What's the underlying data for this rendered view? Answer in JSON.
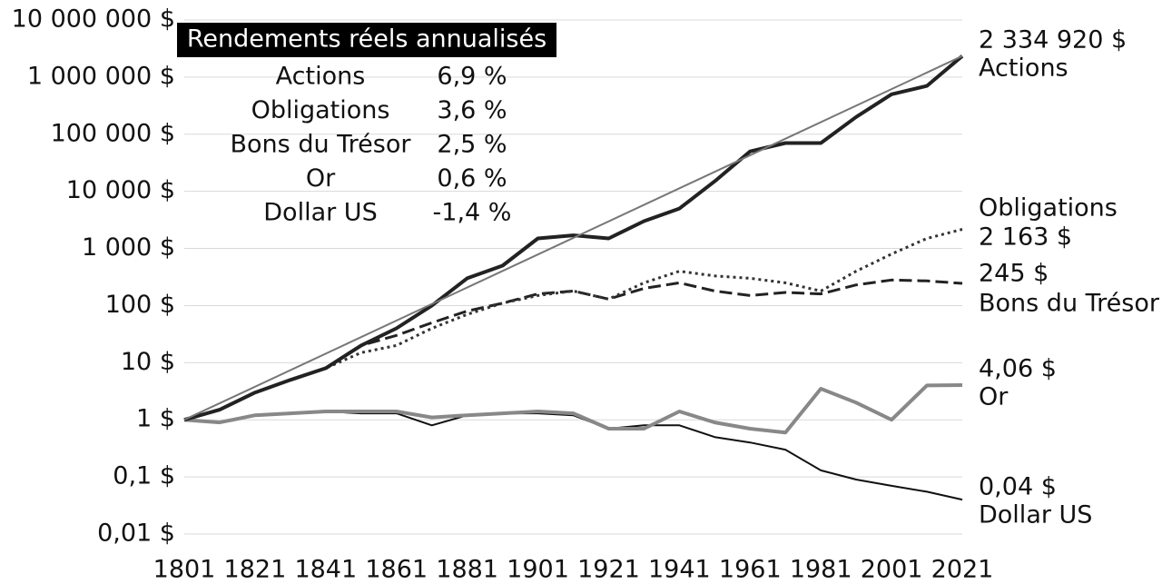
{
  "chart_data": {
    "type": "line",
    "log_scale": true,
    "grid": true,
    "annotation": {
      "title": "Rendements réels annualisés",
      "rows": [
        [
          "Actions",
          "6,9 %"
        ],
        [
          "Obligations",
          "3,6 %"
        ],
        [
          "Bons du Trésor",
          "2,5 %"
        ],
        [
          "Or",
          "0,6 %"
        ],
        [
          "Dollar US",
          "-1,4 %"
        ]
      ]
    },
    "x": [
      1801,
      1811,
      1821,
      1831,
      1841,
      1851,
      1861,
      1871,
      1881,
      1891,
      1901,
      1911,
      1921,
      1931,
      1941,
      1951,
      1961,
      1971,
      1981,
      1991,
      2001,
      2011,
      2021
    ],
    "xlim": [
      1801,
      2021
    ],
    "xticks": [
      1801,
      1821,
      1841,
      1861,
      1881,
      1901,
      1921,
      1941,
      1961,
      1981,
      2001,
      2021
    ],
    "ylim": [
      0.01,
      10000000
    ],
    "yticks": [
      {
        "value": 0.01,
        "label": "0,01 $"
      },
      {
        "value": 0.1,
        "label": "0,1 $"
      },
      {
        "value": 1,
        "label": "1 $"
      },
      {
        "value": 10,
        "label": "10 $"
      },
      {
        "value": 100,
        "label": "100 $"
      },
      {
        "value": 1000,
        "label": "1 000 $"
      },
      {
        "value": 10000,
        "label": "10 000 $"
      },
      {
        "value": 100000,
        "label": "100 000 $"
      },
      {
        "value": 1000000,
        "label": "1 000 000 $"
      },
      {
        "value": 10000000,
        "label": "10 000 000 $"
      }
    ],
    "trend": {
      "x": [
        1801,
        2021
      ],
      "values": [
        1,
        2334920
      ],
      "color": "#777777"
    },
    "series": [
      {
        "name": "Actions",
        "color": "#222222",
        "width": 4,
        "dash": "solid",
        "values": [
          1,
          1.5,
          3,
          5,
          8,
          20,
          40,
          100,
          300,
          500,
          1500,
          1700,
          1500,
          3000,
          5000,
          15000,
          50000,
          70000,
          70000,
          200000,
          500000,
          700000,
          2334920
        ],
        "value_labels": [
          null,
          null,
          null,
          null,
          null,
          null,
          null,
          null,
          null,
          null,
          null,
          null,
          null,
          null,
          null,
          null,
          null,
          null,
          null,
          null,
          null,
          null,
          "2 334 920 $"
        ]
      },
      {
        "name": "Obligations",
        "color": "#333333",
        "width": 3,
        "dash": "dotted",
        "values": [
          1,
          1.5,
          3,
          5,
          8,
          15,
          20,
          40,
          70,
          110,
          150,
          180,
          130,
          250,
          400,
          330,
          300,
          250,
          180,
          400,
          800,
          1500,
          2163
        ],
        "value_labels": [
          null,
          null,
          null,
          null,
          null,
          null,
          null,
          null,
          null,
          null,
          null,
          null,
          null,
          null,
          null,
          null,
          null,
          null,
          null,
          null,
          null,
          null,
          "2 163 $"
        ]
      },
      {
        "name": "Bons du Trésor",
        "color": "#222222",
        "width": 3,
        "dash": "dashed",
        "values": [
          1,
          1.5,
          3,
          5,
          8,
          20,
          30,
          50,
          80,
          110,
          160,
          180,
          130,
          200,
          250,
          180,
          150,
          170,
          160,
          230,
          280,
          270,
          245
        ],
        "value_labels": [
          null,
          null,
          null,
          null,
          null,
          null,
          null,
          null,
          null,
          null,
          null,
          null,
          null,
          null,
          null,
          null,
          null,
          null,
          null,
          null,
          null,
          null,
          "245 $"
        ]
      },
      {
        "name": "Or",
        "color": "#888888",
        "width": 4,
        "dash": "solid",
        "values": [
          1,
          0.9,
          1.2,
          1.3,
          1.4,
          1.4,
          1.4,
          1.1,
          1.2,
          1.3,
          1.4,
          1.3,
          0.7,
          0.7,
          1.4,
          0.9,
          0.7,
          0.6,
          3.5,
          2,
          1,
          4,
          4.06
        ],
        "value_labels": [
          null,
          null,
          null,
          null,
          null,
          null,
          null,
          null,
          null,
          null,
          null,
          null,
          null,
          null,
          null,
          null,
          null,
          null,
          null,
          null,
          null,
          null,
          "4,06 $"
        ]
      },
      {
        "name": "Dollar US",
        "color": "#111111",
        "width": 2,
        "dash": "solid",
        "values": [
          1,
          0.9,
          1.2,
          1.3,
          1.4,
          1.3,
          1.3,
          0.8,
          1.2,
          1.3,
          1.3,
          1.2,
          0.7,
          0.8,
          0.8,
          0.5,
          0.4,
          0.3,
          0.13,
          0.09,
          0.07,
          0.055,
          0.04
        ],
        "value_labels": [
          null,
          null,
          null,
          null,
          null,
          null,
          null,
          null,
          null,
          null,
          null,
          null,
          null,
          null,
          null,
          null,
          null,
          null,
          null,
          null,
          null,
          null,
          "0,04 $"
        ]
      }
    ]
  }
}
